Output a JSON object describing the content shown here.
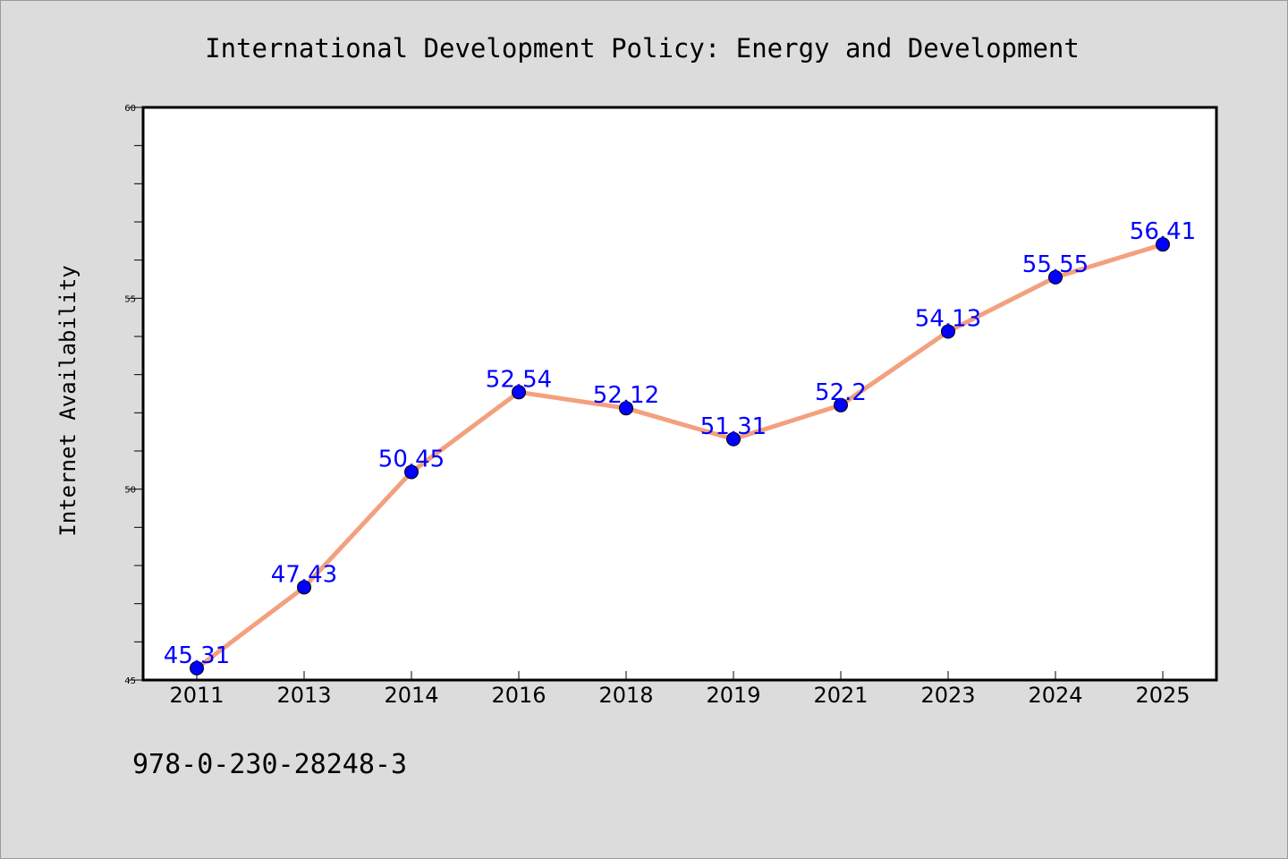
{
  "chart_data": {
    "type": "line",
    "title": "International Development Policy: Energy and Development",
    "ylabel": "Internet Availability",
    "xlabel": "",
    "categories": [
      "2011",
      "2013",
      "2014",
      "2016",
      "2018",
      "2019",
      "2021",
      "2023",
      "2024",
      "2025"
    ],
    "series": [
      {
        "values": [
          45.31,
          47.43,
          50.45,
          52.54,
          52.12,
          51.31,
          52.2,
          54.13,
          55.55,
          56.41
        ],
        "labels": [
          "45.31",
          "47.43",
          "50.45",
          "52.54",
          "52.12",
          "51.31",
          "52.2",
          "54.13",
          "55.55",
          "56.41"
        ]
      }
    ],
    "ylim": [
      45,
      60
    ],
    "yticks": [
      "45",
      "50",
      "55",
      "60"
    ],
    "grid": false,
    "colors": {
      "line": "#f4a07e",
      "marker": "#0000ff",
      "label": "#0000ff",
      "plot_bg": "#ffffff",
      "page_bg": "#dcdcdc"
    }
  },
  "footer": {
    "isbn": "978-0-230-28248-3"
  }
}
